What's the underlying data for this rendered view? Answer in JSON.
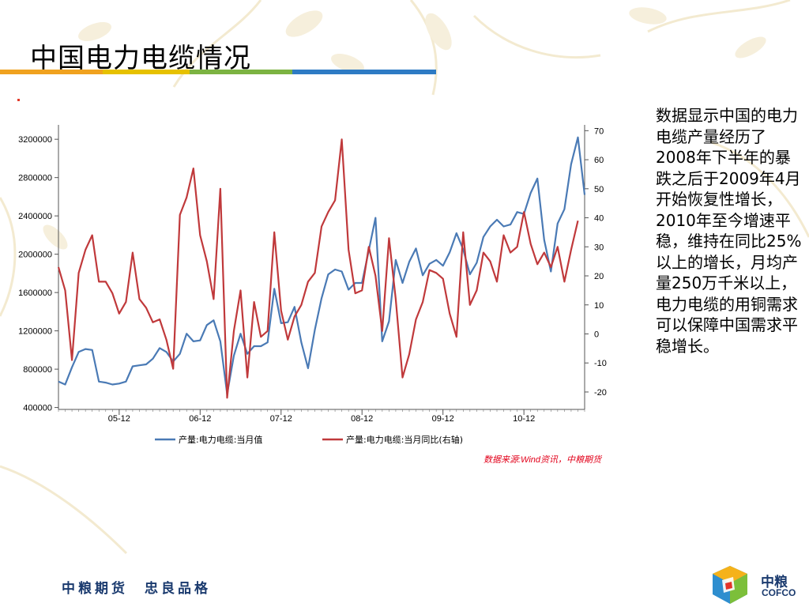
{
  "title": "中国电力电缆情况",
  "colors": {
    "bar_segments": [
      "#f0a21f",
      "#e6c100",
      "#7cb342",
      "#2e7bc4"
    ],
    "series_left": "#4a7ab5",
    "series_right": "#c0393b",
    "source_text": "#e2001a"
  },
  "description": "数据显示中国的电力电缆产量经历了2008年下半年的暴跌之后于2009年4月开始恢复性增长，2010年至今增速平稳，维持在同比25%以上的增长，月均产量250万千米以上，电力电缆的用铜需求可以保障中国需求平稳增长。",
  "source": "数据来源:Wind资讯，中粮期货",
  "footer": {
    "slogan": "中粮期货　忠良品格",
    "logo_cn": "中粮",
    "logo_en": "COFCO"
  },
  "chart_data": {
    "type": "line",
    "x_tick_labels": [
      "05-12",
      "06-12",
      "07-12",
      "08-12",
      "09-12",
      "10-12"
    ],
    "x_tick_index": [
      9,
      21,
      33,
      45,
      57,
      69
    ],
    "y_left": {
      "ticks": [
        400000,
        800000,
        1200000,
        1600000,
        2000000,
        2400000,
        2800000,
        3200000
      ],
      "range": [
        380000,
        3350000
      ]
    },
    "y_right": {
      "ticks": [
        -20,
        -10,
        0,
        10,
        20,
        30,
        40,
        50,
        60,
        70
      ],
      "range": [
        -26,
        72
      ]
    },
    "series": [
      {
        "name": "产量:电力电缆:当月值",
        "axis": "left",
        "values": [
          670000,
          640000,
          820000,
          980000,
          1010000,
          1000000,
          670000,
          660000,
          640000,
          650000,
          670000,
          830000,
          840000,
          850000,
          910000,
          1020000,
          980000,
          880000,
          960000,
          1170000,
          1090000,
          1100000,
          1260000,
          1310000,
          1090000,
          540000,
          940000,
          1170000,
          960000,
          1040000,
          1040000,
          1080000,
          1640000,
          1280000,
          1290000,
          1450000,
          1080000,
          810000,
          1210000,
          1540000,
          1790000,
          1840000,
          1820000,
          1630000,
          1700000,
          1700000,
          2040000,
          2380000,
          1090000,
          1300000,
          1940000,
          1700000,
          1920000,
          2060000,
          1780000,
          1900000,
          1940000,
          1880000,
          2020000,
          2220000,
          2050000,
          1790000,
          1910000,
          2180000,
          2290000,
          2360000,
          2290000,
          2310000,
          2440000,
          2420000,
          2640000,
          2790000,
          2150000,
          1820000,
          2320000,
          2470000,
          2940000,
          3220000,
          2620000
        ]
      },
      {
        "name": "产量:电力电缆:当月同比(右轴)",
        "axis": "right",
        "values": [
          23,
          15,
          -9,
          21,
          29,
          34,
          18,
          18,
          14,
          7,
          11,
          28,
          12,
          9,
          4,
          5,
          -2,
          -12,
          41,
          47,
          57,
          34,
          25,
          12,
          50,
          -22,
          1,
          15,
          -15,
          11,
          -1,
          1,
          35,
          8,
          -2,
          6,
          10,
          18,
          21,
          37,
          42,
          46,
          67,
          29,
          14,
          15,
          30,
          20,
          1,
          33,
          12,
          -15,
          -7,
          5,
          11,
          22,
          21,
          19,
          7,
          -1,
          35,
          10,
          15,
          28,
          25,
          18,
          34,
          28,
          30,
          42,
          31,
          24,
          28,
          23,
          30,
          18,
          29,
          39
        ]
      }
    ],
    "legend": [
      "产量:电力电缆:当月值",
      "产量:电力电缆:当月同比(右轴)"
    ],
    "legend_position": "bottom",
    "grid": false
  }
}
